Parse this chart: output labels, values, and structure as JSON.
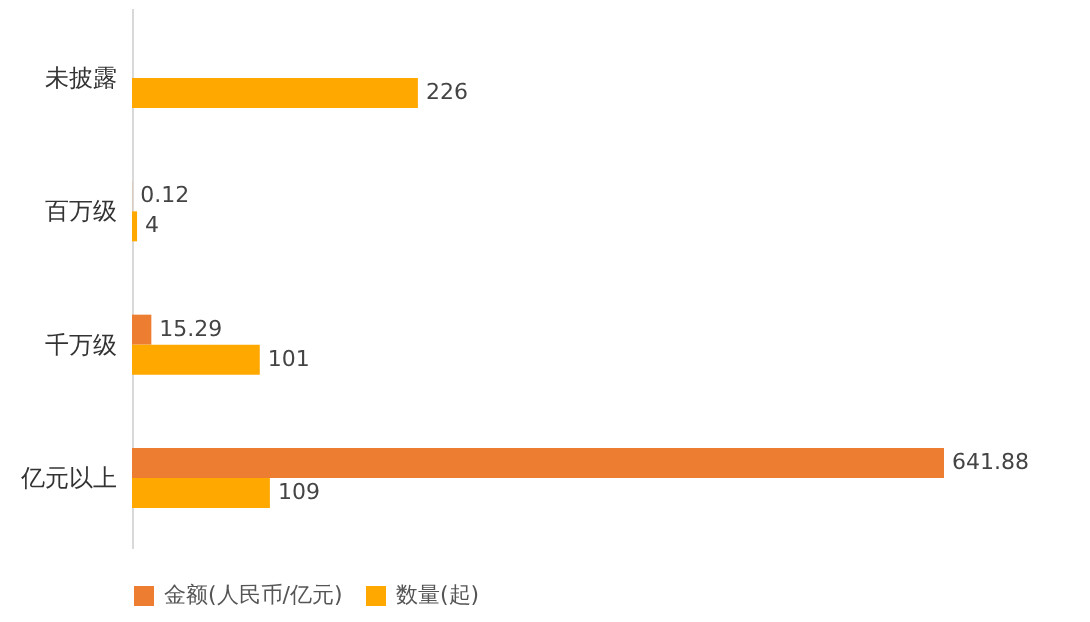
{
  "chart_data": {
    "type": "bar",
    "orientation": "horizontal",
    "categories": [
      "未披露",
      "百万级",
      "千万级",
      "亿元以上"
    ],
    "series": [
      {
        "name": "金额(人民币/亿元)",
        "color": "#ed7d31",
        "values": [
          null,
          0.12,
          15.29,
          641.88
        ]
      },
      {
        "name": "数量(起)",
        "color": "#ffa800",
        "values": [
          226,
          4,
          101,
          109
        ]
      }
    ],
    "data_labels": true,
    "legend": "bottom",
    "grid": false
  }
}
